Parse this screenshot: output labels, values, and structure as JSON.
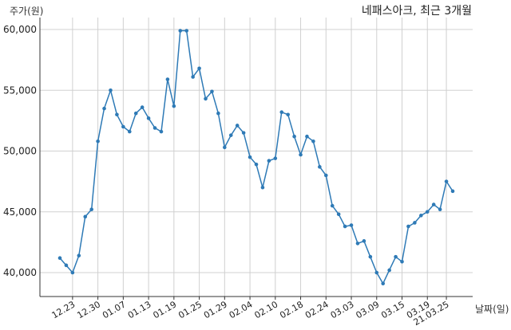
{
  "chart_data": {
    "type": "line",
    "title": "네패스아크, 최근 3개월",
    "ylabel": "주가(원)",
    "xlabel": "날짜(일)",
    "ylim": [
      38000,
      62000
    ],
    "yticks": [
      40000,
      45000,
      50000,
      55000,
      60000
    ],
    "ytick_labels": [
      "40,000",
      "45,000",
      "50,000",
      "55,000",
      "60,000"
    ],
    "grid": true,
    "colors": {
      "line": "#2e7ab6",
      "grid": "#d0d0d0",
      "axis": "#333333"
    },
    "x_tick_labels": [
      {
        "index": 2,
        "label": "12.23"
      },
      {
        "index": 6,
        "label": "12.30"
      },
      {
        "index": 10,
        "label": "01.07"
      },
      {
        "index": 14,
        "label": "01.13"
      },
      {
        "index": 18,
        "label": "01.19"
      },
      {
        "index": 22,
        "label": "01.25"
      },
      {
        "index": 26,
        "label": "01.29"
      },
      {
        "index": 30,
        "label": "02.04"
      },
      {
        "index": 34,
        "label": "02.10"
      },
      {
        "index": 38,
        "label": "02.18"
      },
      {
        "index": 42,
        "label": "02.24"
      },
      {
        "index": 46,
        "label": "03.03"
      },
      {
        "index": 50,
        "label": "03.09"
      },
      {
        "index": 54,
        "label": "03.15"
      },
      {
        "index": 58,
        "label": "03.19"
      },
      {
        "index": 61,
        "label": "21.03.25"
      }
    ],
    "series": [
      {
        "values": [
          41200,
          40600,
          40000,
          41400,
          44600,
          45200,
          50800,
          53500,
          55000,
          53000,
          52000,
          51600,
          53100,
          53600,
          52700,
          51900,
          51600,
          55900,
          53700,
          59900,
          59900,
          56100,
          56800,
          54300,
          54900,
          53100,
          50300,
          51300,
          52100,
          51500,
          49500,
          48900,
          47000,
          49200,
          49400,
          53200,
          53000,
          51200,
          49700,
          51200,
          50800,
          48700,
          48000,
          45500,
          44800,
          43800,
          43900,
          42400,
          42600,
          41300,
          40000,
          39100,
          40200,
          41300,
          40900,
          43800,
          44100,
          44700,
          45000,
          45600,
          45200,
          47500,
          46700
        ]
      }
    ]
  }
}
